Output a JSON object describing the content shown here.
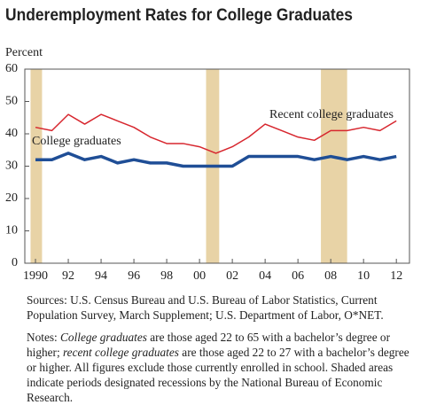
{
  "chart_data": {
    "type": "line",
    "title": "Underemployment Rates for College Graduates",
    "y_label": "Percent",
    "x": [
      1990,
      1991,
      1992,
      1993,
      1994,
      1995,
      1996,
      1997,
      1998,
      1999,
      2000,
      2001,
      2002,
      2003,
      2004,
      2005,
      2006,
      2007,
      2008,
      2009,
      2010,
      2011,
      2012
    ],
    "series": [
      {
        "name": "Recent college graduates",
        "color": "#d7262e",
        "width": 1.5,
        "values": [
          42,
          41,
          46,
          43,
          46,
          44,
          42,
          39,
          37,
          37,
          36,
          34,
          36,
          39,
          43,
          41,
          39,
          38,
          41,
          41,
          42,
          41,
          44
        ]
      },
      {
        "name": "College graduates",
        "color": "#1f4e96",
        "width": 3.5,
        "values": [
          32,
          32,
          34,
          32,
          33,
          31,
          32,
          31,
          31,
          30,
          30,
          30,
          30,
          33,
          33,
          33,
          33,
          32,
          33,
          32,
          33,
          32,
          33
        ]
      }
    ],
    "recessions": [
      [
        1989.7,
        1990.4
      ],
      [
        2000.4,
        2001.2
      ],
      [
        2007.4,
        2009.0
      ]
    ],
    "recession_color": "#e8d3a6",
    "xlim": [
      1989.35,
      2012.8
    ],
    "xticks": [
      1990,
      {
        "value": 1992,
        "label": "92"
      },
      {
        "value": 1994,
        "label": "94"
      },
      {
        "value": 1996,
        "label": "96"
      },
      {
        "value": 1998,
        "label": "98"
      },
      {
        "value": 2000,
        "label": "00"
      },
      {
        "value": 2002,
        "label": "02"
      },
      {
        "value": 2004,
        "label": "04"
      },
      {
        "value": 2006,
        "label": "06"
      },
      {
        "value": 2008,
        "label": "08"
      },
      {
        "value": 2010,
        "label": "10"
      },
      {
        "value": 2012,
        "label": "12"
      }
    ],
    "ylim": [
      0,
      60
    ],
    "yticks": [
      0,
      10,
      20,
      30,
      40,
      50,
      60
    ],
    "sources": "Sources: U.S. Census Bureau and U.S. Bureau of Labor Statistics, Current Population Survey, March Supplement; U.S. Department of Labor, O*NET.",
    "notes": [
      "Notes: ",
      "College graduates",
      " are those aged 22 to 65 with a bachelor’s degree or higher; ",
      "recent college graduates",
      " are those aged 22 to 27 with a bachelor’s degree or higher. All figures exclude those currently enrolled in school. Shaded areas indicate periods designated recessions by the National Bureau of Economic Research."
    ]
  }
}
